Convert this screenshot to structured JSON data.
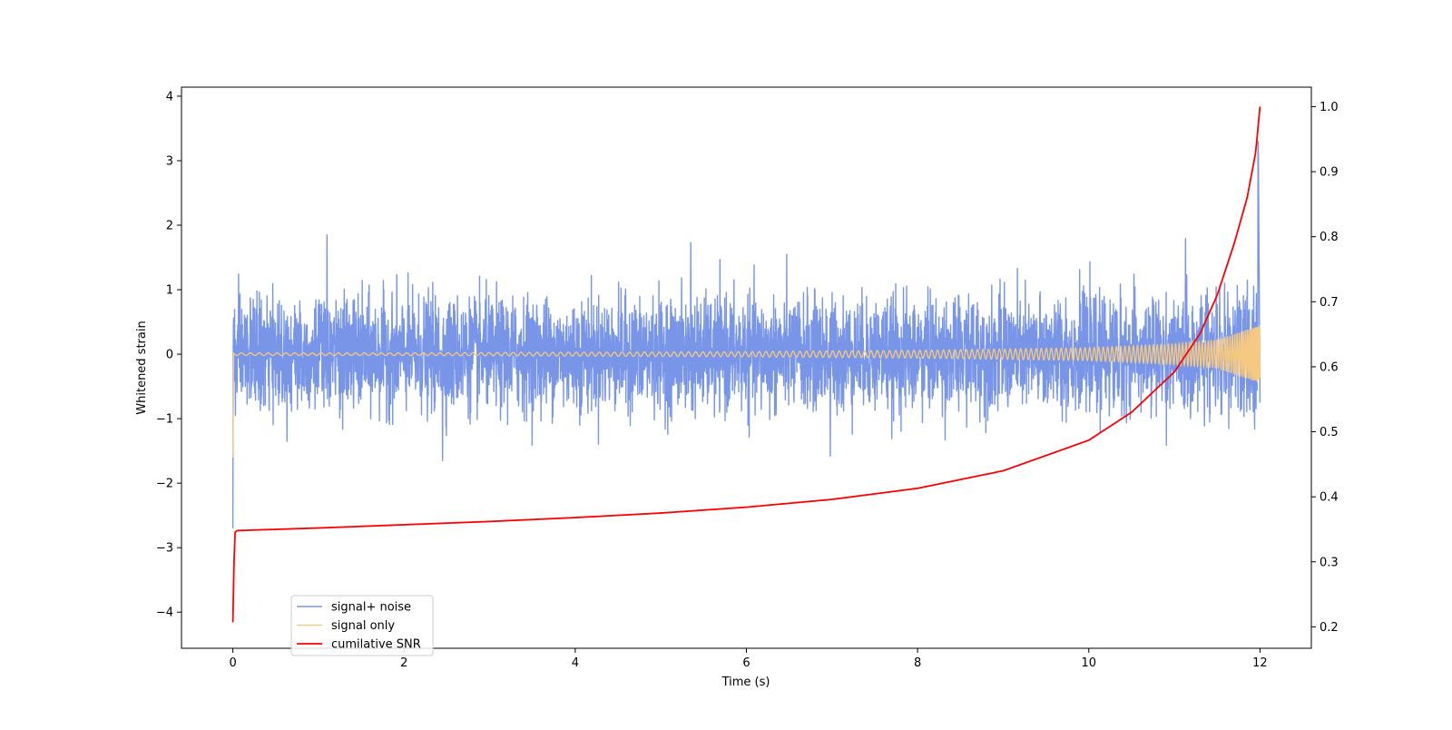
{
  "chart_data": {
    "type": "line",
    "title": "",
    "xlabel": "Time (s)",
    "ylabel": "Whitened strain",
    "ylabel_right": "",
    "xlim": [
      -0.6,
      12.6
    ],
    "ylim": [
      -4.56,
      4.14
    ],
    "ylim_right": [
      0.167,
      1.03
    ],
    "x_ticks": [
      0,
      2,
      4,
      6,
      8,
      10,
      12
    ],
    "y_ticks": [
      -4,
      -3,
      -2,
      -1,
      0,
      1,
      2,
      3,
      4
    ],
    "y_ticks_right": [
      0.2,
      0.3,
      0.4,
      0.5,
      0.6,
      0.7,
      0.8,
      0.9,
      1.0
    ],
    "grid": false,
    "legend_position": "lower-left",
    "series": [
      {
        "name": "signal+ noise",
        "axis": "left",
        "color": "#7895e8",
        "description_of_values": "whitened strain noise, amplitude about ±1, extremes about -1.75 to 1.85; start transient down to -2.7 at t=0, spike to 3.3 near t=12",
        "x": [
          0,
          0.005,
          0.01,
          0.03,
          1.1,
          2.45,
          5.35,
          6.98,
          11.5,
          11.98,
          12.0
        ],
        "values": [
          -2.7,
          0.35,
          0.6,
          -0.95,
          1.85,
          -1.65,
          1.73,
          -1.58,
          1.0,
          3.3,
          -0.75
        ]
      },
      {
        "name": "signal only",
        "axis": "left",
        "color": "#f6c982",
        "description_of_values": "chirp sinusoid whose amplitude grows from about 0.02 to about 0.45 and whose frequency rises toward t=12",
        "x": [
          0,
          2,
          4,
          6,
          8,
          10,
          11,
          11.5,
          12
        ],
        "values": [
          0.02,
          0.02,
          0.03,
          0.04,
          0.06,
          0.1,
          0.16,
          0.22,
          0.45
        ]
      },
      {
        "name": "cumilative SNR",
        "axis": "right",
        "color": "#ff0000",
        "x": [
          0,
          0.02,
          0.05,
          1,
          2,
          3,
          4,
          5,
          6,
          7,
          8,
          9,
          10,
          10.5,
          11,
          11.3,
          11.5,
          11.7,
          11.85,
          11.95,
          12.0
        ],
        "values": [
          0.207,
          0.345,
          0.348,
          0.352,
          0.357,
          0.362,
          0.368,
          0.375,
          0.384,
          0.396,
          0.413,
          0.44,
          0.487,
          0.53,
          0.592,
          0.651,
          0.71,
          0.79,
          0.86,
          0.93,
          1.0
        ]
      }
    ]
  }
}
